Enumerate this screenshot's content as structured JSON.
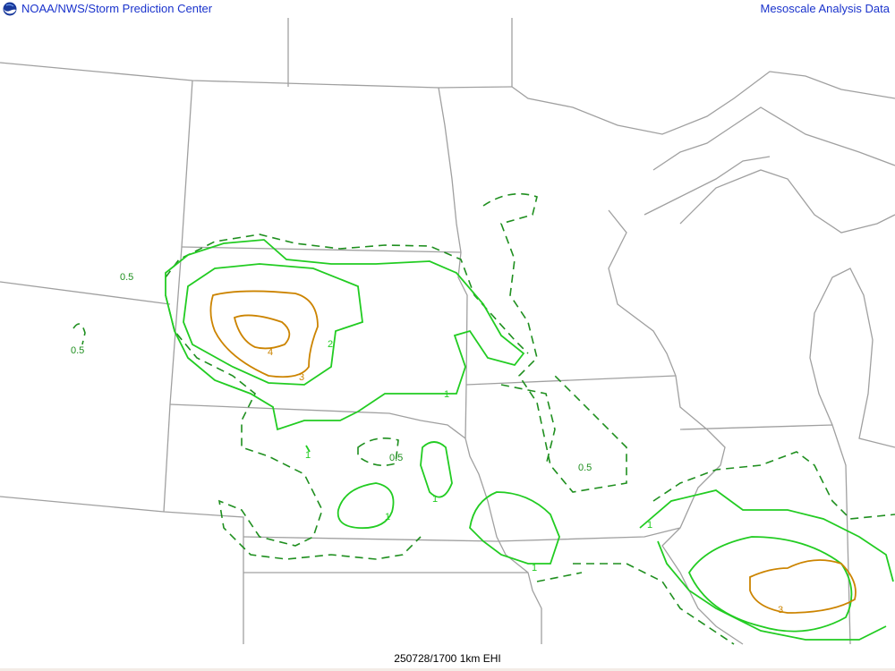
{
  "header": {
    "logo": "NOAA logo",
    "left_title": "NOAA/NWS/Storm Prediction Center",
    "right_title": "Mesoscale Analysis Data"
  },
  "footer": {
    "caption": "250728/1700 1km EHI"
  },
  "map": {
    "colors": {
      "boundaries": "#a0a0a0",
      "contour_0_5": "#1f8f1f",
      "contour_1_2": "#22cc22",
      "contour_3_4": "#cc8400",
      "title_text": "#1a33cc"
    },
    "contour_labels": [
      {
        "text": "0.5",
        "color": "#1f8f1f"
      },
      {
        "text": "0.5",
        "color": "#1f8f1f"
      },
      {
        "text": "2",
        "color": "#22cc22"
      },
      {
        "text": "4",
        "color": "#cc8400"
      },
      {
        "text": "3",
        "color": "#cc8400"
      },
      {
        "text": "1",
        "color": "#22cc22"
      },
      {
        "text": "1",
        "color": "#22cc22"
      },
      {
        "text": "0.5",
        "color": "#1f8f1f"
      },
      {
        "text": "1",
        "color": "#22cc22"
      },
      {
        "text": "1",
        "color": "#22cc22"
      },
      {
        "text": "0.5",
        "color": "#1f8f1f"
      },
      {
        "text": "1",
        "color": "#22cc22"
      },
      {
        "text": "1",
        "color": "#22cc22"
      },
      {
        "text": "3",
        "color": "#cc8400"
      }
    ]
  }
}
